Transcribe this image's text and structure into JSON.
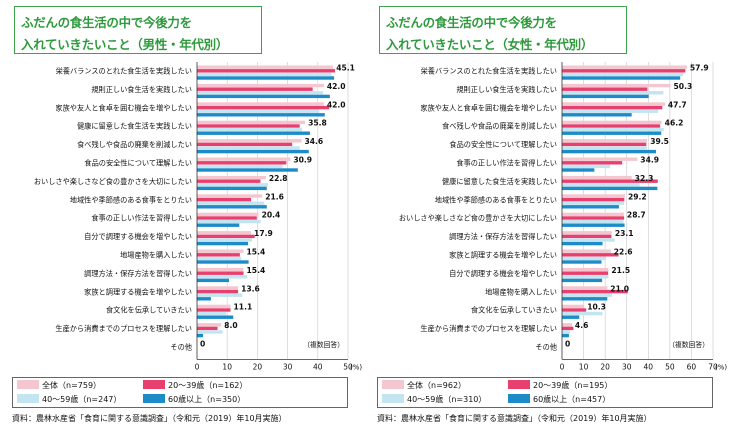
{
  "colors": {
    "total": "#f4c6cf",
    "age_20_39": "#e8406e",
    "age_40_59": "#c3e4f1",
    "age_60_plus": "#1e8bc9",
    "title_green": "#2e9a3c"
  },
  "charts": [
    {
      "title_line1": "ふだんの食生活の中で今後力を",
      "title_line2": "入れていきたいこと（男性・年代別）",
      "note": "（複数回答）",
      "pct_unit": "(%)",
      "legend": {
        "total": "全体（n=759）",
        "age_20_39": "20～39歳（n=162）",
        "age_40_59": "40～59歳（n=247）",
        "age_60_plus": "60歳以上（n=350）"
      },
      "source": "資料：農林水産省「食育に関する意識調査」（令和元（2019）年10月実施）",
      "chart_data": {
        "type": "bar",
        "orientation": "horizontal",
        "xlim": [
          0,
          50
        ],
        "xticks": [
          "0",
          "10",
          "20",
          "30",
          "40",
          "50"
        ],
        "xtick_values": [
          0,
          10,
          20,
          30,
          40,
          50
        ],
        "categories": [
          "栄養バランスのとれた食生活を実践したい",
          "規則正しい食生活を実践したい",
          "家族や友人と食卓を囲む機会を増やしたい",
          "健康に留意した食生活を実践したい",
          "食べ残しや食品の廃棄を削減したい",
          "食品の安全性について理解したい",
          "おいしさや楽しさなど食の豊かさを大切にしたい",
          "地域性や季節感のある食事をとりたい",
          "食事の正しい作法を習得したい",
          "自分で調理する機会を増やしたい",
          "地場産物を購入したい",
          "調理方法・保存方法を習得したい",
          "家族と調理する機会を増やしたい",
          "食文化を伝承していきたい",
          "生産から消費までのプロセスを理解したい",
          "その他"
        ],
        "labels": [
          "45.1",
          "42.0",
          "42.0",
          "35.8",
          "34.6",
          "30.9",
          "22.8",
          "21.6",
          "20.4",
          "17.9",
          "15.4",
          "15.4",
          "13.6",
          "11.1",
          "8.0",
          "0"
        ],
        "series": [
          {
            "name": "全体",
            "key": "total",
            "values": [
              45.1,
              42.0,
              42.0,
              35.8,
              34.6,
              30.9,
              22.8,
              21.6,
              20.4,
              17.9,
              15.4,
              15.4,
              13.6,
              11.1,
              8.0,
              0
            ]
          },
          {
            "name": "20～39歳",
            "key": "age_20_39",
            "values": [
              45.7,
              38.3,
              43.8,
              34.0,
              31.5,
              29.6,
              21.0,
              17.9,
              19.8,
              19.1,
              14.2,
              15.4,
              13.6,
              11.1,
              6.8,
              0
            ]
          },
          {
            "name": "40～59歳",
            "key": "age_40_59",
            "values": [
              44.5,
              41.7,
              40.5,
              34.8,
              34.0,
              28.3,
              23.5,
              22.3,
              21.1,
              18.2,
              14.6,
              16.6,
              15.0,
              9.7,
              8.5,
              0
            ]
          },
          {
            "name": "60歳以上",
            "key": "age_60_plus",
            "values": [
              45.4,
              44.0,
              42.3,
              37.4,
              37.0,
              33.4,
              23.1,
              23.1,
              14.0,
              16.9,
              17.1,
              10.6,
              4.6,
              12.0,
              2.0,
              0
            ]
          }
        ]
      }
    },
    {
      "title_line1": "ふだんの食生活の中で今後力を",
      "title_line2": "入れていきたいこと（女性・年代別）",
      "note": "（複数回答）",
      "pct_unit": "(%)",
      "legend": {
        "total": "全体（n=962）",
        "age_20_39": "20～39歳（n=195）",
        "age_40_59": "40～59歳（n=310）",
        "age_60_plus": "60歳以上（n=457）"
      },
      "source": "資料：農林水産省「食育に関する意識調査」（令和元（2019）年10月実施）",
      "chart_data": {
        "type": "bar",
        "orientation": "horizontal",
        "xlim": [
          0,
          70
        ],
        "xticks": [
          "0",
          "10",
          "20",
          "30",
          "40",
          "50",
          "60",
          "70"
        ],
        "xtick_values": [
          0,
          10,
          20,
          30,
          40,
          50,
          60,
          70
        ],
        "categories": [
          "栄養バランスのとれた食生活を実践したい",
          "規則正しい食生活を実践したい",
          "家族や友人と食卓を囲む機会を増やしたい",
          "食べ残しや食品の廃棄を削減したい",
          "食品の安全性について理解したい",
          "食事の正しい作法を習得したい",
          "健康に留意した食生活を実践したい",
          "地域性や季節感のある食事をとりたい",
          "おいしさや楽しさなど食の豊かさを大切にしたい",
          "調理方法・保存方法を習得したい",
          "家族と調理する機会を増やしたい",
          "自分で調理する機会を増やしたい",
          "地場産物を購入したい",
          "食文化を伝承していきたい",
          "生産から消費までのプロセスを理解したい",
          "その他"
        ],
        "labels": [
          "57.9",
          "50.3",
          "47.7",
          "46.2",
          "39.5",
          "34.9",
          "32.3",
          "29.2",
          "28.7",
          "23.1",
          "22.6",
          "21.5",
          "21.0",
          "10.3",
          "4.6",
          "0"
        ],
        "series": [
          {
            "name": "全体",
            "key": "total",
            "values": [
              57.9,
              50.3,
              47.7,
              46.2,
              39.5,
              34.9,
              32.3,
              29.2,
              28.7,
              23.1,
              22.6,
              21.5,
              21.0,
              10.3,
              4.6,
              0
            ]
          },
          {
            "name": "20～39歳",
            "key": "age_20_39",
            "values": [
              57.2,
              39.6,
              46.5,
              45.5,
              39.1,
              27.9,
              44.4,
              28.9,
              28.8,
              22.9,
              26.2,
              21.4,
              30.5,
              11.2,
              5.3,
              0
            ]
          },
          {
            "name": "40～59歳",
            "key": "age_40_59",
            "values": [
              56.2,
              47.0,
              44.6,
              47.2,
              39.3,
              22.3,
              36.0,
              28.8,
              28.5,
              24.5,
              20.4,
              21.5,
              23.1,
              18.8,
              3.8,
              0
            ]
          },
          {
            "name": "60歳以上",
            "key": "age_60_plus",
            "values": [
              54.8,
              40.2,
              32.3,
              46.0,
              43.6,
              15.0,
              44.2,
              26.4,
              29.0,
              18.8,
              18.3,
              18.6,
              21.0,
              8.0,
              3.2,
              0
            ]
          }
        ]
      }
    }
  ]
}
